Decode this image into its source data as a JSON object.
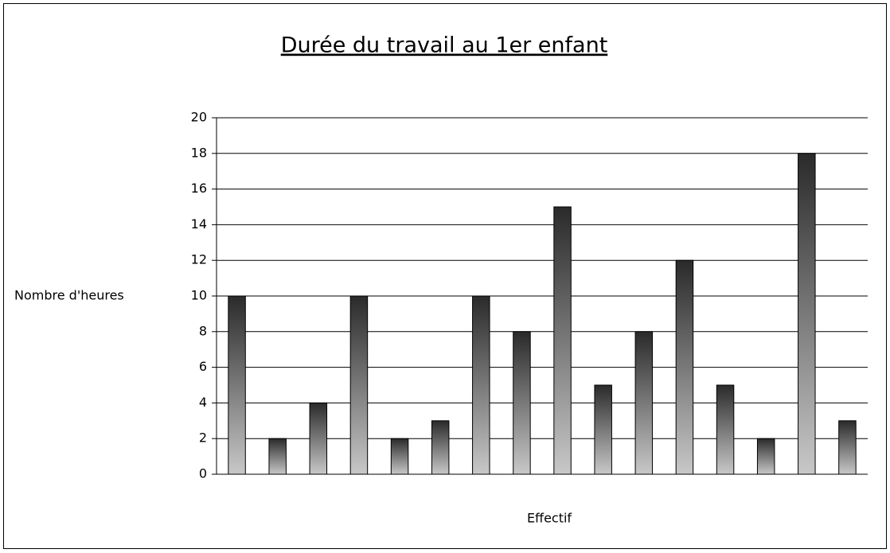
{
  "chart_data": {
    "type": "bar",
    "title": "Durée du travail au 1er enfant",
    "x_label": "Effectif",
    "y_label": "Nombre d'heures",
    "categories": [
      null,
      null,
      null,
      null,
      null,
      null,
      null,
      null,
      null,
      null,
      null,
      null,
      null,
      null,
      null,
      null
    ],
    "values": [
      10,
      2,
      4,
      10,
      2,
      3,
      10,
      8,
      15,
      5,
      8,
      12,
      5,
      2,
      18,
      3
    ],
    "ylim": [
      0,
      20
    ],
    "yticks": [
      0,
      2,
      4,
      6,
      8,
      10,
      12,
      14,
      16,
      18,
      20
    ],
    "grid": true
  }
}
